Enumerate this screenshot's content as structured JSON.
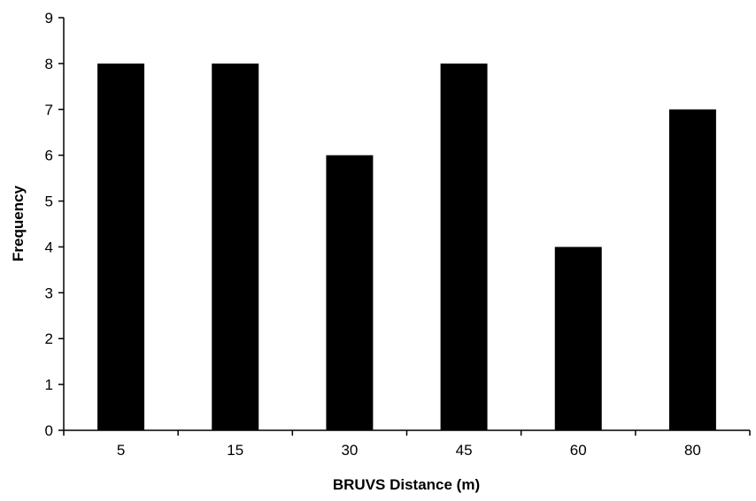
{
  "chart_data": {
    "type": "bar",
    "title": "",
    "xlabel": "BRUVS Distance (m)",
    "ylabel": "Frequency",
    "categories": [
      "5",
      "15",
      "30",
      "45",
      "60",
      "80"
    ],
    "values": [
      8,
      8,
      6,
      8,
      4,
      7
    ],
    "ylim": [
      0,
      9
    ],
    "yticks": [
      "0",
      "1",
      "2",
      "3",
      "4",
      "5",
      "6",
      "7",
      "8",
      "9"
    ],
    "grid": false,
    "legend": "none",
    "colors": {
      "bar": "#000000",
      "axis": "#000000",
      "background": "#ffffff"
    }
  }
}
